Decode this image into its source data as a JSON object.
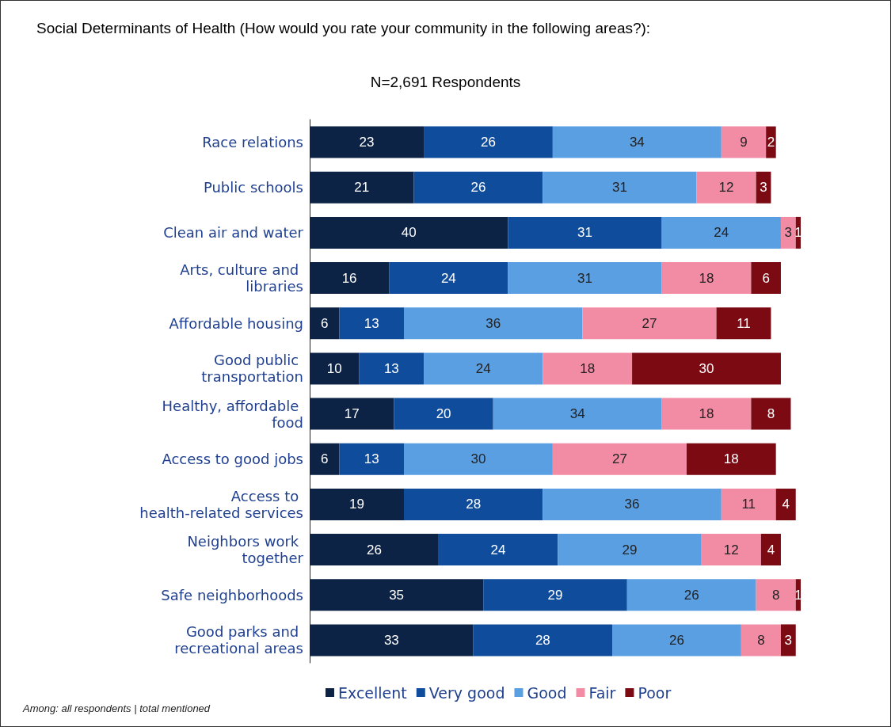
{
  "chart_data": {
    "type": "bar",
    "orientation": "horizontal",
    "stacked": true,
    "data_labels": true,
    "legend": "bottom",
    "title": "Social Determinants of Health (How would you rate your community in the following areas?):",
    "subtitle": "N=2,691 Respondents",
    "annotations": [
      "Among: all respondents | total mentioned"
    ],
    "categories": [
      "Race relations",
      "Public schools",
      "Clean air and water",
      "Arts, culture and libraries",
      "Affordable housing",
      "Good public transportation",
      "Healthy, affordable food",
      "Access to good jobs",
      "Access to health-related services",
      "Neighbors work together",
      "Safe neighborhoods",
      "Good parks and recreational areas"
    ],
    "series": [
      {
        "name": "Excellent",
        "color": "#0c2346",
        "values": [
          23,
          21,
          40,
          16,
          6,
          10,
          17,
          6,
          19,
          26,
          35,
          33
        ]
      },
      {
        "name": "Very good",
        "color": "#0f4c9c",
        "values": [
          26,
          26,
          31,
          24,
          13,
          13,
          20,
          13,
          28,
          24,
          29,
          28
        ]
      },
      {
        "name": "Good",
        "color": "#5b9fe3",
        "values": [
          34,
          31,
          24,
          31,
          36,
          24,
          34,
          30,
          36,
          29,
          26,
          26
        ]
      },
      {
        "name": "Fair",
        "color": "#f28ca5",
        "values": [
          9,
          12,
          3,
          18,
          27,
          18,
          18,
          27,
          11,
          12,
          8,
          8
        ]
      },
      {
        "name": "Poor",
        "color": "#7b0a12",
        "values": [
          2,
          3,
          1,
          6,
          11,
          30,
          8,
          18,
          4,
          4,
          1,
          3
        ]
      }
    ]
  }
}
